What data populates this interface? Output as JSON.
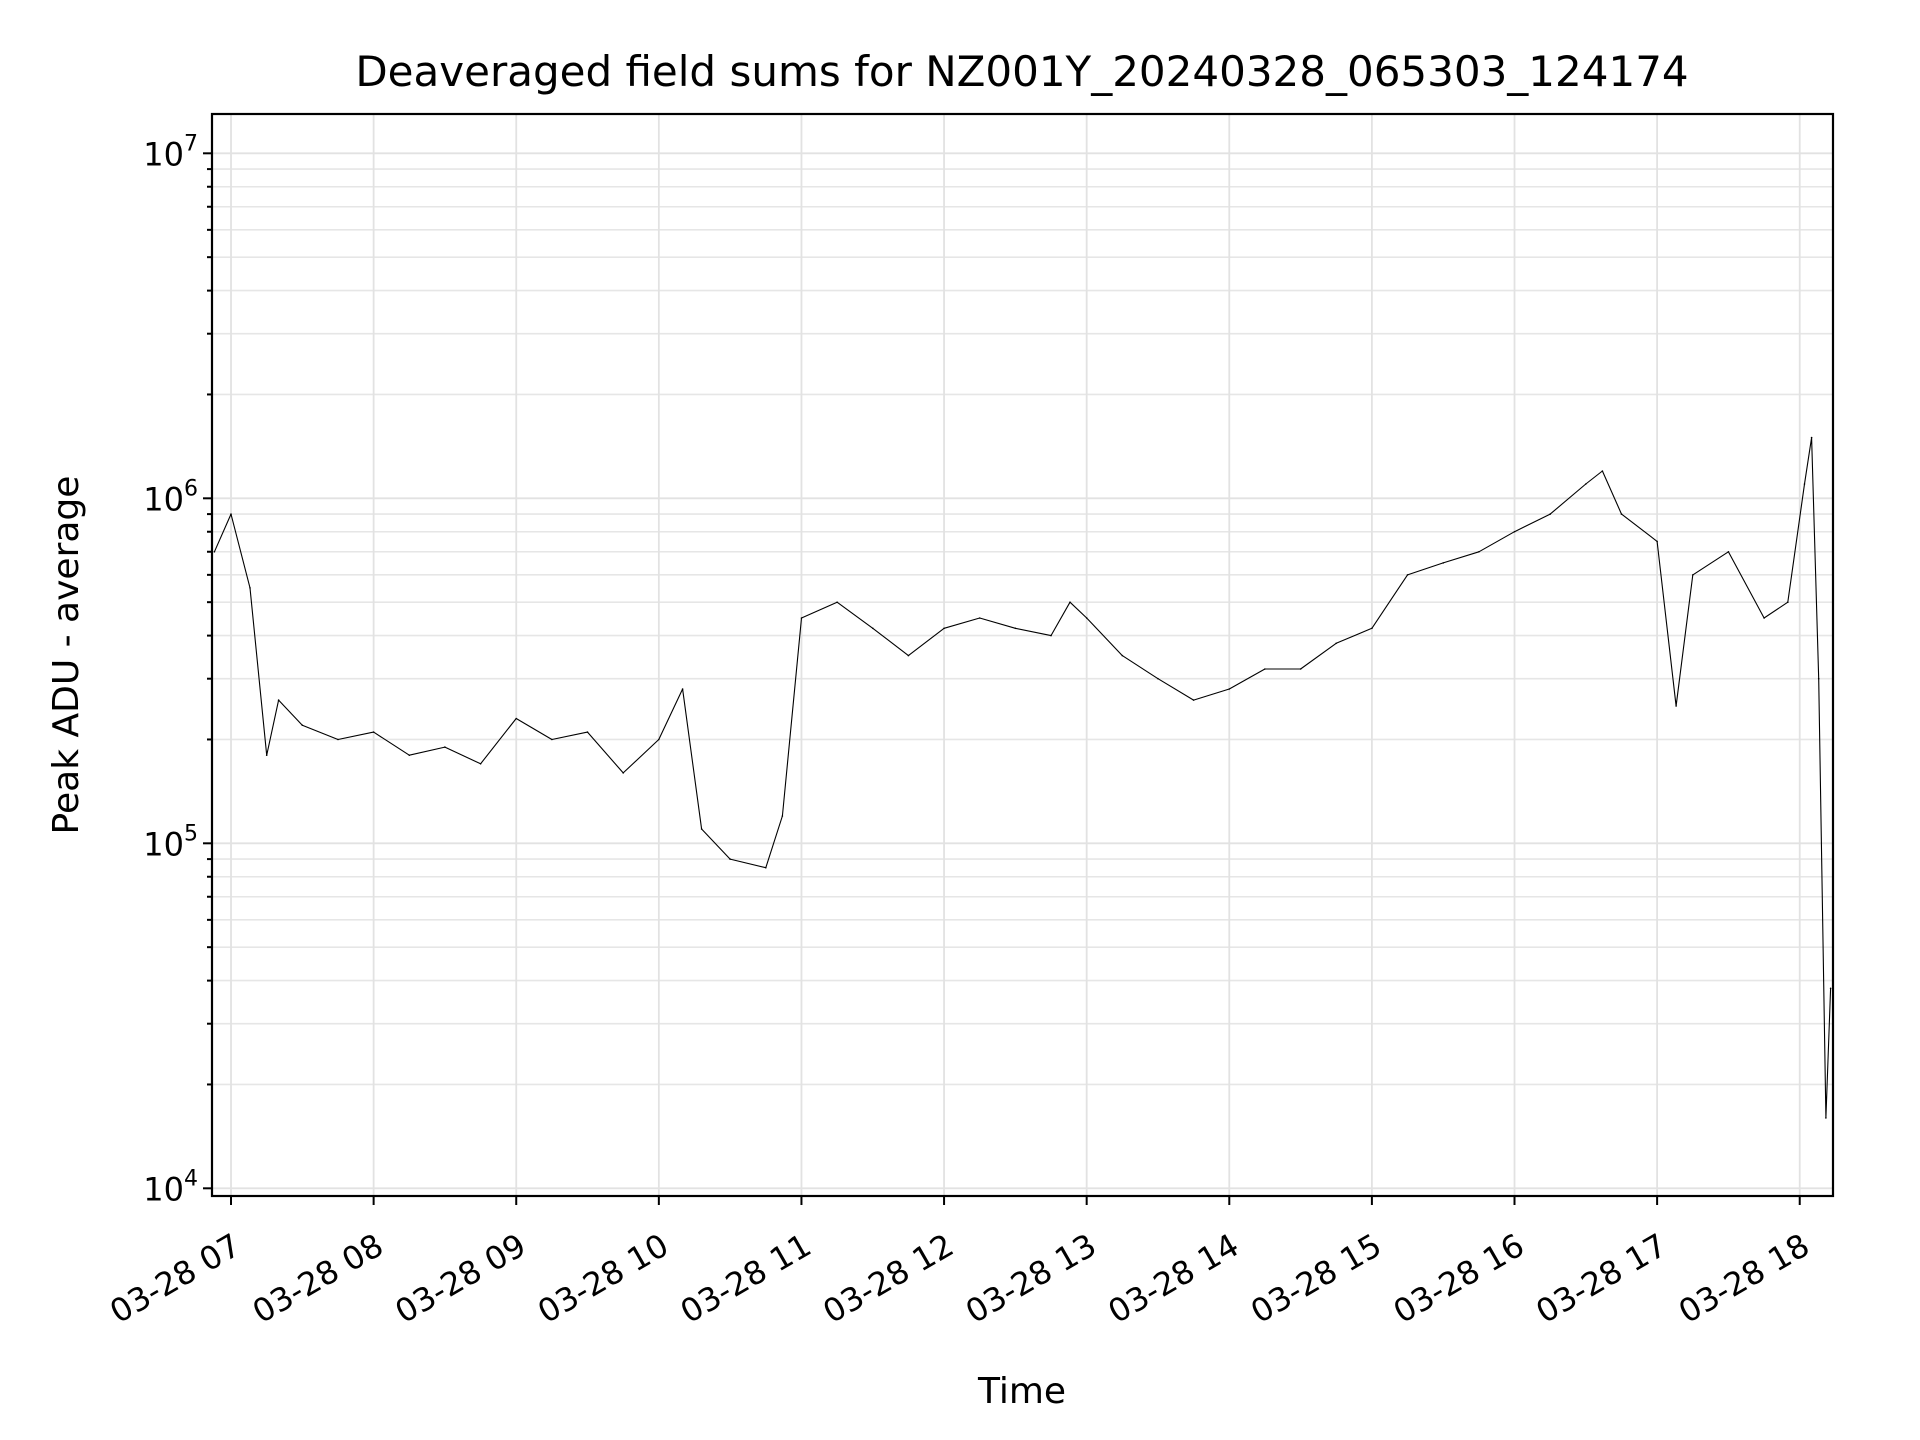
{
  "chart_data": {
    "type": "line",
    "title": "Deaveraged field sums for NZ001Y_20240328_065303_124174",
    "xlabel": "Time",
    "ylabel": "Peak ADU - average",
    "yscale": "log",
    "ylim": [
      9500,
      13000000
    ],
    "xlim": [
      "2024-03-28 06:52",
      "2024-03-28 18:14"
    ],
    "grid": true,
    "x_ticks": [
      {
        "value": "2024-03-28 07:00",
        "label": "03-28 07"
      },
      {
        "value": "2024-03-28 08:00",
        "label": "03-28 08"
      },
      {
        "value": "2024-03-28 09:00",
        "label": "03-28 09"
      },
      {
        "value": "2024-03-28 10:00",
        "label": "03-28 10"
      },
      {
        "value": "2024-03-28 11:00",
        "label": "03-28 11"
      },
      {
        "value": "2024-03-28 12:00",
        "label": "03-28 12"
      },
      {
        "value": "2024-03-28 13:00",
        "label": "03-28 13"
      },
      {
        "value": "2024-03-28 14:00",
        "label": "03-28 14"
      },
      {
        "value": "2024-03-28 15:00",
        "label": "03-28 15"
      },
      {
        "value": "2024-03-28 16:00",
        "label": "03-28 16"
      },
      {
        "value": "2024-03-28 17:00",
        "label": "03-28 17"
      },
      {
        "value": "2024-03-28 18:00",
        "label": "03-28 18"
      }
    ],
    "y_ticks": [
      {
        "value": 10000,
        "base": "10",
        "exp": "4"
      },
      {
        "value": 100000,
        "base": "10",
        "exp": "5"
      },
      {
        "value": 1000000,
        "base": "10",
        "exp": "6"
      },
      {
        "value": 10000000,
        "base": "10",
        "exp": "7"
      }
    ],
    "series": [
      {
        "color": "#000000",
        "x": [
          "2024-03-28 06:53",
          "2024-03-28 07:00",
          "2024-03-28 07:08",
          "2024-03-28 07:15",
          "2024-03-28 07:20",
          "2024-03-28 07:30",
          "2024-03-28 07:45",
          "2024-03-28 08:00",
          "2024-03-28 08:15",
          "2024-03-28 08:30",
          "2024-03-28 08:45",
          "2024-03-28 09:00",
          "2024-03-28 09:15",
          "2024-03-28 09:30",
          "2024-03-28 09:45",
          "2024-03-28 10:00",
          "2024-03-28 10:10",
          "2024-03-28 10:18",
          "2024-03-28 10:30",
          "2024-03-28 10:45",
          "2024-03-28 10:52",
          "2024-03-28 11:00",
          "2024-03-28 11:15",
          "2024-03-28 11:30",
          "2024-03-28 11:45",
          "2024-03-28 12:00",
          "2024-03-28 12:15",
          "2024-03-28 12:30",
          "2024-03-28 12:45",
          "2024-03-28 12:53",
          "2024-03-28 13:00",
          "2024-03-28 13:15",
          "2024-03-28 13:30",
          "2024-03-28 13:45",
          "2024-03-28 14:00",
          "2024-03-28 14:15",
          "2024-03-28 14:30",
          "2024-03-28 14:45",
          "2024-03-28 15:00",
          "2024-03-28 15:15",
          "2024-03-28 15:30",
          "2024-03-28 15:45",
          "2024-03-28 16:00",
          "2024-03-28 16:15",
          "2024-03-28 16:30",
          "2024-03-28 16:37",
          "2024-03-28 16:45",
          "2024-03-28 17:00",
          "2024-03-28 17:08",
          "2024-03-28 17:15",
          "2024-03-28 17:30",
          "2024-03-28 17:45",
          "2024-03-28 17:55",
          "2024-03-28 18:02",
          "2024-03-28 18:05",
          "2024-03-28 18:08",
          "2024-03-28 18:11",
          "2024-03-28 18:13"
        ],
        "y": [
          700000,
          900000,
          550000,
          180000,
          260000,
          220000,
          200000,
          210000,
          180000,
          190000,
          170000,
          230000,
          200000,
          210000,
          160000,
          200000,
          280000,
          110000,
          90000,
          85000,
          120000,
          450000,
          500000,
          420000,
          350000,
          420000,
          450000,
          420000,
          400000,
          500000,
          450000,
          350000,
          300000,
          260000,
          280000,
          320000,
          320000,
          380000,
          420000,
          600000,
          650000,
          700000,
          800000,
          900000,
          1100000,
          1200000,
          900000,
          750000,
          250000,
          600000,
          700000,
          450000,
          500000,
          1100000,
          1500000,
          300000,
          16000,
          38000
        ]
      }
    ]
  }
}
